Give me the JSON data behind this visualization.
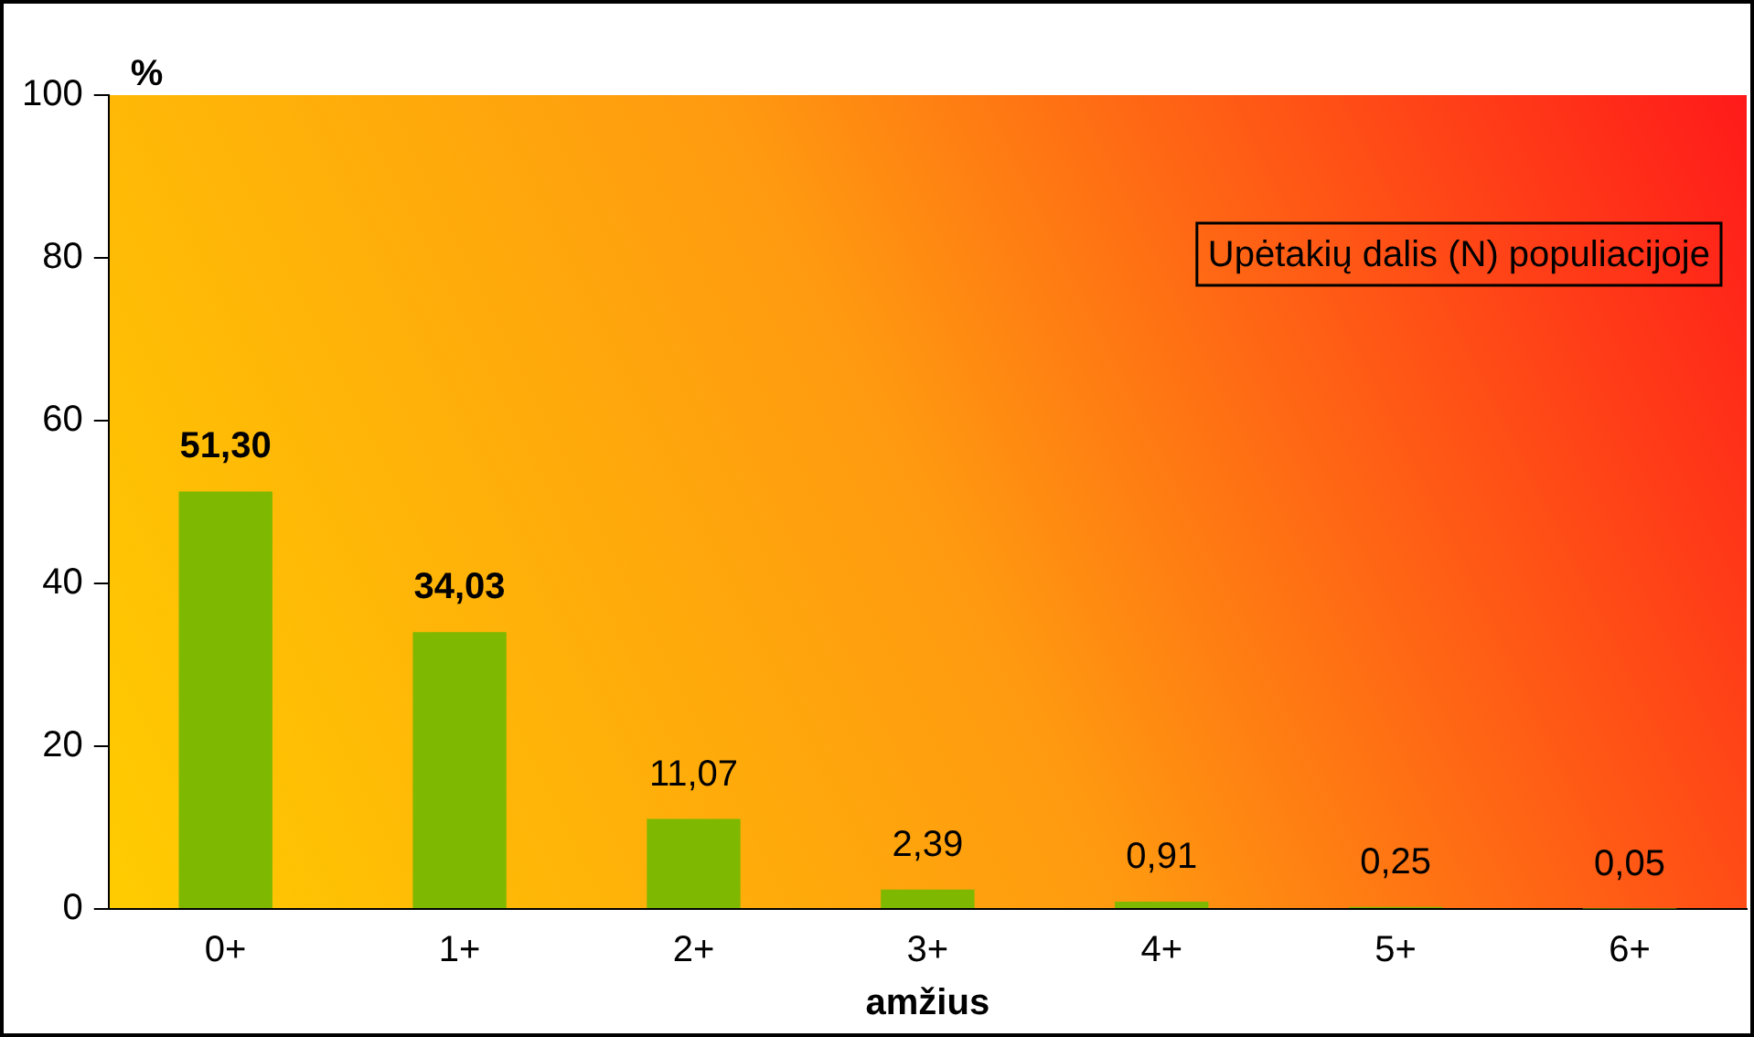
{
  "chart_data": {
    "type": "bar",
    "xlabel": "amžius",
    "ylabel": "%",
    "categories": [
      "0+",
      "1+",
      "2+",
      "3+",
      "4+",
      "5+",
      "6+"
    ],
    "values": [
      51.3,
      34.03,
      11.07,
      2.39,
      0.91,
      0.25,
      0.05
    ],
    "value_labels": [
      "51,30",
      "34,03",
      "11,07",
      "2,39",
      "0,91",
      "0,25",
      "0,05"
    ],
    "color": "#7fb800",
    "ylim": [
      0,
      100
    ],
    "yticks": [
      0,
      20,
      40,
      60,
      80,
      100
    ],
    "grid": false,
    "legend": false,
    "annotations": [
      "Upėtakių dalis (N) populiacijoje"
    ]
  }
}
